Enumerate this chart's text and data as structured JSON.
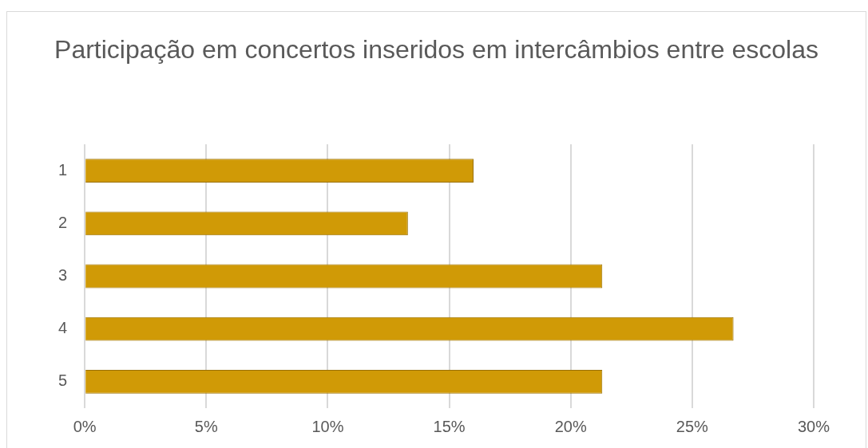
{
  "chart_data": {
    "type": "bar",
    "orientation": "horizontal",
    "title": "Participação em concertos inseridos em intercâmbios entre escolas",
    "categories": [
      "1",
      "2",
      "3",
      "4",
      "5"
    ],
    "values": [
      16,
      13.3,
      21.3,
      26.7,
      21.3
    ],
    "color": "#d09a06",
    "xlim": [
      0,
      30
    ],
    "xticks": [
      {
        "value": 0,
        "label": "0%"
      },
      {
        "value": 5,
        "label": "5%"
      },
      {
        "value": 10,
        "label": "10%"
      },
      {
        "value": 15,
        "label": "15%"
      },
      {
        "value": 20,
        "label": "20%"
      },
      {
        "value": 25,
        "label": "25%"
      },
      {
        "value": 30,
        "label": "30%"
      }
    ],
    "grid": "x",
    "legend": false
  }
}
